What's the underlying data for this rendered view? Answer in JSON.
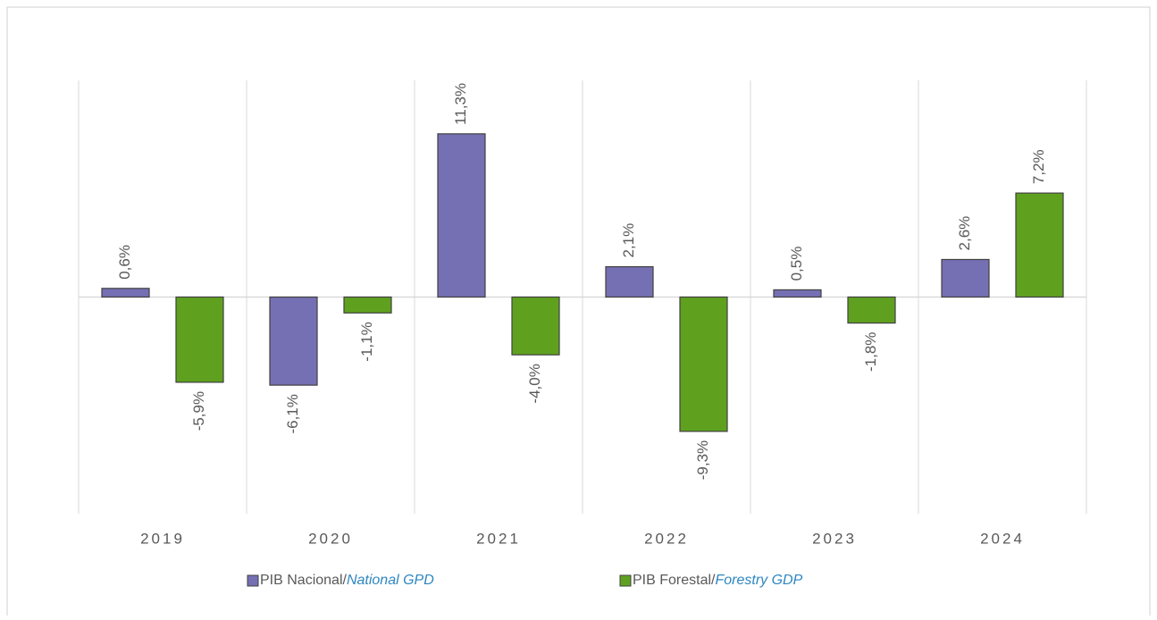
{
  "chart_data": {
    "type": "bar",
    "categories": [
      "2019",
      "2020",
      "2021",
      "2022",
      "2023",
      "2024"
    ],
    "series": [
      {
        "name": "PIB Nacional/",
        "name_translation": "National GPD",
        "color": "#7570b3",
        "values": [
          0.6,
          -6.1,
          11.3,
          2.1,
          0.5,
          2.6
        ],
        "value_labels": [
          "0,6%",
          "-6,1%",
          "11,3%",
          "2,1%",
          "0,5%",
          "2,6%"
        ]
      },
      {
        "name": "PIB Forestal/",
        "name_translation": "Forestry GDP",
        "color": "#5fa11f",
        "values": [
          -5.9,
          -1.1,
          -4.0,
          -9.3,
          -1.8,
          7.2
        ],
        "value_labels": [
          "-5,9%",
          "-1,1%",
          "-4,0%",
          "-9,3%",
          "-1,8%",
          "7,2%"
        ]
      }
    ],
    "ylim": [
      -15,
      15
    ],
    "legend": "bottom"
  }
}
